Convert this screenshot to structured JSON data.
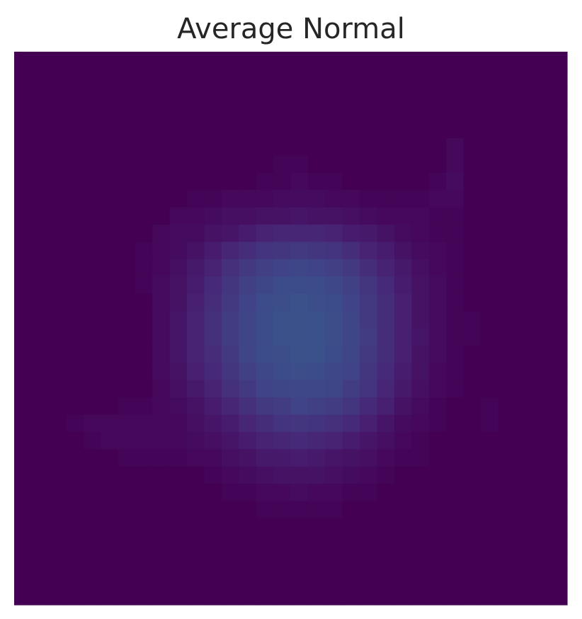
{
  "chart_data": {
    "type": "heatmap",
    "title": "Average Normal",
    "xlabel": "",
    "ylabel": "",
    "colormap": "viridis",
    "value_range": [
      0,
      1
    ],
    "grid": false,
    "axes_visible": false,
    "rows": 32,
    "cols": 32,
    "values": [
      [
        0,
        0,
        0,
        0,
        0,
        0,
        0,
        0,
        0,
        0,
        0,
        0,
        0,
        0,
        0,
        0,
        0,
        0,
        0,
        0,
        0,
        0,
        0,
        0,
        0,
        0,
        0,
        0,
        0,
        0,
        0,
        0
      ],
      [
        0,
        0,
        0,
        0,
        0,
        0,
        0,
        0,
        0,
        0,
        0,
        0,
        0,
        0,
        0,
        0,
        0,
        0,
        0,
        0,
        0,
        0,
        0,
        0,
        0,
        0,
        0,
        0,
        0,
        0,
        0,
        0
      ],
      [
        0,
        0,
        0,
        0,
        0,
        0,
        0,
        0,
        0,
        0,
        0,
        0,
        0,
        0,
        0,
        0,
        0,
        0,
        0,
        0,
        0,
        0,
        0,
        0,
        0,
        0,
        0,
        0,
        0,
        0,
        0,
        0
      ],
      [
        0,
        0,
        0,
        0,
        0,
        0,
        0,
        0,
        0,
        0,
        0,
        0,
        0,
        0,
        0,
        0,
        0,
        0,
        0,
        0,
        0,
        0,
        0,
        0,
        0,
        0,
        0,
        0,
        0,
        0,
        0,
        0
      ],
      [
        0,
        0,
        0,
        0,
        0,
        0,
        0,
        0,
        0,
        0,
        0,
        0,
        0,
        0,
        0,
        0,
        0,
        0,
        0,
        0,
        0,
        0,
        0,
        0,
        0,
        0,
        0,
        0,
        0,
        0,
        0,
        0
      ],
      [
        0,
        0,
        0,
        0,
        0,
        0,
        0,
        0,
        0,
        0,
        0,
        0,
        0,
        0,
        0,
        0,
        0,
        0,
        0,
        0,
        0,
        0,
        0,
        0,
        0,
        0.02,
        0,
        0,
        0,
        0,
        0,
        0
      ],
      [
        0,
        0,
        0,
        0,
        0,
        0,
        0,
        0,
        0,
        0,
        0,
        0,
        0,
        0,
        0,
        0.01,
        0.01,
        0,
        0,
        0,
        0,
        0,
        0,
        0,
        0,
        0.02,
        0,
        0,
        0,
        0,
        0,
        0
      ],
      [
        0,
        0,
        0,
        0,
        0,
        0,
        0,
        0,
        0,
        0,
        0,
        0,
        0,
        0,
        0.01,
        0.01,
        0.02,
        0.01,
        0.01,
        0,
        0,
        0,
        0,
        0,
        0.01,
        0.03,
        0,
        0,
        0,
        0,
        0,
        0
      ],
      [
        0,
        0,
        0,
        0,
        0,
        0,
        0,
        0,
        0,
        0,
        0.01,
        0.01,
        0.02,
        0.02,
        0.02,
        0.03,
        0.03,
        0.03,
        0.02,
        0.02,
        0.01,
        0.01,
        0.01,
        0.01,
        0.02,
        0.02,
        0,
        0,
        0,
        0,
        0,
        0
      ],
      [
        0,
        0,
        0,
        0,
        0,
        0,
        0,
        0,
        0,
        0.02,
        0.02,
        0.03,
        0.04,
        0.04,
        0.05,
        0.05,
        0.06,
        0.05,
        0.05,
        0.04,
        0.03,
        0.02,
        0.02,
        0.02,
        0.01,
        0.01,
        0,
        0,
        0,
        0,
        0,
        0
      ],
      [
        0,
        0,
        0,
        0,
        0,
        0,
        0,
        0,
        0.02,
        0.03,
        0.03,
        0.05,
        0.06,
        0.08,
        0.1,
        0.11,
        0.11,
        0.11,
        0.1,
        0.08,
        0.07,
        0.05,
        0.03,
        0.02,
        0.01,
        0.01,
        0,
        0,
        0,
        0,
        0,
        0
      ],
      [
        0,
        0,
        0,
        0,
        0,
        0,
        0,
        0.01,
        0.02,
        0.03,
        0.05,
        0.08,
        0.11,
        0.13,
        0.15,
        0.16,
        0.17,
        0.16,
        0.15,
        0.13,
        0.1,
        0.08,
        0.05,
        0.03,
        0.02,
        0.01,
        0,
        0,
        0,
        0,
        0,
        0
      ],
      [
        0,
        0,
        0,
        0,
        0,
        0,
        0,
        0.01,
        0.02,
        0.04,
        0.07,
        0.1,
        0.14,
        0.17,
        0.19,
        0.2,
        0.21,
        0.2,
        0.19,
        0.17,
        0.13,
        0.1,
        0.07,
        0.04,
        0.02,
        0.01,
        0,
        0,
        0,
        0,
        0,
        0
      ],
      [
        0,
        0,
        0,
        0,
        0,
        0,
        0,
        0.01,
        0.03,
        0.05,
        0.08,
        0.12,
        0.16,
        0.19,
        0.21,
        0.23,
        0.23,
        0.23,
        0.22,
        0.19,
        0.16,
        0.12,
        0.08,
        0.05,
        0.03,
        0.01,
        0,
        0,
        0,
        0,
        0,
        0
      ],
      [
        0,
        0,
        0,
        0,
        0,
        0,
        0,
        0,
        0.03,
        0.05,
        0.09,
        0.13,
        0.17,
        0.2,
        0.23,
        0.24,
        0.25,
        0.24,
        0.23,
        0.2,
        0.17,
        0.13,
        0.09,
        0.05,
        0.03,
        0.01,
        0,
        0,
        0,
        0,
        0,
        0
      ],
      [
        0,
        0,
        0,
        0,
        0,
        0,
        0,
        0,
        0.03,
        0.06,
        0.1,
        0.14,
        0.18,
        0.21,
        0.23,
        0.25,
        0.25,
        0.25,
        0.24,
        0.21,
        0.17,
        0.13,
        0.09,
        0.05,
        0.03,
        0.01,
        0.01,
        0,
        0,
        0,
        0,
        0
      ],
      [
        0,
        0,
        0,
        0,
        0,
        0,
        0,
        0,
        0.03,
        0.06,
        0.1,
        0.14,
        0.18,
        0.21,
        0.23,
        0.25,
        0.25,
        0.25,
        0.24,
        0.21,
        0.18,
        0.13,
        0.09,
        0.06,
        0.03,
        0.01,
        0.01,
        0,
        0,
        0,
        0,
        0
      ],
      [
        0,
        0,
        0,
        0,
        0,
        0,
        0,
        0,
        0.03,
        0.06,
        0.1,
        0.13,
        0.17,
        0.21,
        0.23,
        0.24,
        0.25,
        0.25,
        0.23,
        0.21,
        0.17,
        0.13,
        0.09,
        0.05,
        0.03,
        0.01,
        0,
        0,
        0,
        0,
        0,
        0
      ],
      [
        0,
        0,
        0,
        0,
        0,
        0,
        0,
        0,
        0.03,
        0.05,
        0.09,
        0.12,
        0.16,
        0.19,
        0.22,
        0.23,
        0.24,
        0.23,
        0.22,
        0.2,
        0.16,
        0.12,
        0.08,
        0.05,
        0.02,
        0.01,
        0,
        0,
        0,
        0,
        0,
        0
      ],
      [
        0,
        0,
        0,
        0,
        0,
        0,
        0,
        0,
        0.02,
        0.04,
        0.07,
        0.1,
        0.14,
        0.17,
        0.2,
        0.21,
        0.22,
        0.22,
        0.21,
        0.18,
        0.15,
        0.11,
        0.07,
        0.04,
        0.02,
        0.01,
        0,
        0,
        0,
        0,
        0,
        0
      ],
      [
        0,
        0,
        0,
        0,
        0,
        0,
        0.01,
        0.01,
        0.02,
        0.03,
        0.05,
        0.08,
        0.11,
        0.14,
        0.17,
        0.18,
        0.2,
        0.19,
        0.18,
        0.16,
        0.12,
        0.09,
        0.05,
        0.03,
        0.01,
        0,
        0,
        0.01,
        0,
        0,
        0,
        0
      ],
      [
        0,
        0,
        0,
        0.01,
        0.02,
        0.02,
        0.02,
        0.02,
        0.02,
        0.02,
        0.04,
        0.06,
        0.08,
        0.11,
        0.13,
        0.15,
        0.16,
        0.15,
        0.14,
        0.12,
        0.09,
        0.06,
        0.03,
        0.02,
        0.01,
        0,
        0,
        0.01,
        0,
        0,
        0,
        0
      ],
      [
        0,
        0,
        0,
        0,
        0.01,
        0.02,
        0.02,
        0.02,
        0.02,
        0.02,
        0.03,
        0.04,
        0.06,
        0.08,
        0.1,
        0.11,
        0.12,
        0.11,
        0.1,
        0.08,
        0.06,
        0.04,
        0.02,
        0.01,
        0,
        0,
        0,
        0,
        0,
        0,
        0,
        0
      ],
      [
        0,
        0,
        0,
        0,
        0,
        0,
        0.01,
        0.01,
        0.01,
        0.01,
        0.02,
        0.02,
        0.04,
        0.05,
        0.07,
        0.07,
        0.08,
        0.07,
        0.06,
        0.05,
        0.04,
        0.02,
        0.01,
        0.01,
        0,
        0,
        0,
        0,
        0,
        0,
        0,
        0
      ],
      [
        0,
        0,
        0,
        0,
        0,
        0,
        0,
        0,
        0,
        0,
        0,
        0.01,
        0.02,
        0.03,
        0.04,
        0.05,
        0.05,
        0.05,
        0.04,
        0.03,
        0.02,
        0.01,
        0,
        0,
        0,
        0,
        0,
        0,
        0,
        0,
        0,
        0
      ],
      [
        0,
        0,
        0,
        0,
        0,
        0,
        0,
        0,
        0,
        0,
        0,
        0,
        0.01,
        0.01,
        0.02,
        0.02,
        0.03,
        0.02,
        0.02,
        0.01,
        0.01,
        0,
        0,
        0,
        0,
        0,
        0,
        0,
        0,
        0,
        0,
        0
      ],
      [
        0,
        0,
        0,
        0,
        0,
        0,
        0,
        0,
        0,
        0,
        0,
        0,
        0,
        0,
        0.01,
        0.01,
        0.01,
        0.01,
        0.01,
        0,
        0,
        0,
        0,
        0,
        0,
        0,
        0,
        0,
        0,
        0,
        0,
        0
      ],
      [
        0,
        0,
        0,
        0,
        0,
        0,
        0,
        0,
        0,
        0,
        0,
        0,
        0,
        0,
        0,
        0,
        0,
        0,
        0,
        0,
        0,
        0,
        0,
        0,
        0,
        0,
        0,
        0,
        0,
        0,
        0,
        0
      ],
      [
        0,
        0,
        0,
        0,
        0,
        0,
        0,
        0,
        0,
        0,
        0,
        0,
        0,
        0,
        0,
        0,
        0,
        0,
        0,
        0,
        0,
        0,
        0,
        0,
        0,
        0,
        0,
        0,
        0,
        0,
        0,
        0
      ],
      [
        0,
        0,
        0,
        0,
        0,
        0,
        0,
        0,
        0,
        0,
        0,
        0,
        0,
        0,
        0,
        0,
        0,
        0,
        0,
        0,
        0,
        0,
        0,
        0,
        0,
        0,
        0,
        0,
        0,
        0,
        0,
        0
      ],
      [
        0,
        0,
        0,
        0,
        0,
        0,
        0,
        0,
        0,
        0,
        0,
        0,
        0,
        0,
        0,
        0,
        0,
        0,
        0,
        0,
        0,
        0,
        0,
        0,
        0,
        0,
        0,
        0,
        0,
        0,
        0,
        0
      ],
      [
        0,
        0,
        0,
        0,
        0,
        0,
        0,
        0,
        0,
        0,
        0,
        0,
        0,
        0,
        0,
        0,
        0,
        0,
        0,
        0,
        0,
        0,
        0,
        0,
        0,
        0,
        0,
        0,
        0,
        0,
        0,
        0
      ]
    ]
  }
}
